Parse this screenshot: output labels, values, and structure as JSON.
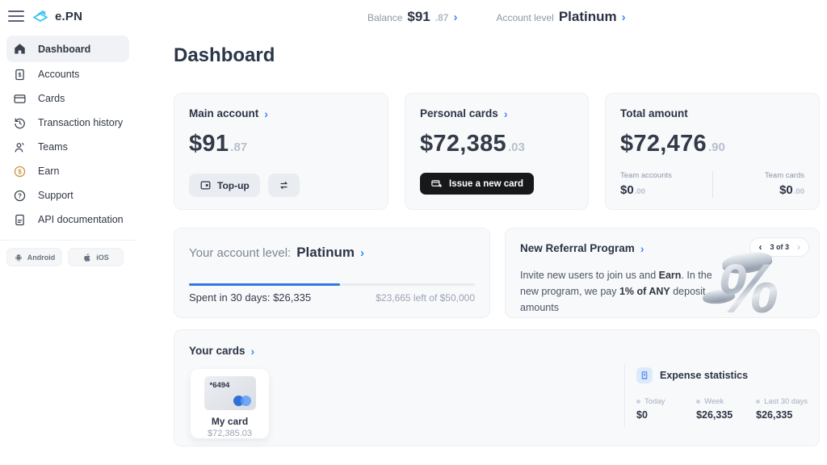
{
  "glyphs": {
    "chevron_right": "›",
    "chevron_left": "‹"
  },
  "colors": {
    "accent_blue": "#3d8af7",
    "progress_blue": "#3578e5",
    "logo_cyan": "#35c4f0",
    "earn_gold": "#c9953d",
    "dark_button": "#17181a"
  },
  "header": {
    "logo_text": "e.PN",
    "balance_label": "Balance",
    "balance_main": "$91",
    "balance_cents": ".87",
    "account_level_label": "Account level",
    "account_level_value": "Platinum"
  },
  "sidebar": {
    "items": [
      {
        "label": "Dashboard",
        "icon": "home-icon",
        "active": true
      },
      {
        "label": "Accounts",
        "icon": "account-document-icon",
        "active": false
      },
      {
        "label": "Cards",
        "icon": "card-icon",
        "active": false
      },
      {
        "label": "Transaction history",
        "icon": "history-icon",
        "active": false
      },
      {
        "label": "Teams",
        "icon": "people-icon",
        "active": false
      },
      {
        "label": "Earn",
        "icon": "dollar-circle-icon",
        "active": false
      },
      {
        "label": "Support",
        "icon": "question-circle-icon",
        "active": false
      },
      {
        "label": "API documentation",
        "icon": "document-icon",
        "active": false
      }
    ],
    "apps": [
      {
        "label": "Android",
        "icon": "android-icon"
      },
      {
        "label": "iOS",
        "icon": "apple-icon"
      }
    ]
  },
  "page_title": "Dashboard",
  "cards": {
    "main_account": {
      "title": "Main account",
      "amount_main": "$91",
      "amount_cents": ".87",
      "topup_label": "Top-up"
    },
    "personal_cards": {
      "title": "Personal cards",
      "amount_main": "$72,385",
      "amount_cents": ".03",
      "issue_label": "Issue a new card"
    },
    "total_amount": {
      "title": "Total amount",
      "amount_main": "$72,476",
      "amount_cents": ".90",
      "team_accounts_label": "Team accounts",
      "team_accounts_main": "$0",
      "team_accounts_cents": ".00",
      "team_cards_label": "Team cards",
      "team_cards_main": "$0",
      "team_cards_cents": ".00"
    }
  },
  "account_level": {
    "label": "Your account level:",
    "value": "Platinum",
    "spent_text": "Spent in 30 days: $26,335",
    "left_text": "$23,665 left of $50,000",
    "progress_percent": 52.7
  },
  "referral": {
    "title": "New Referral Program",
    "pagination": "3 of 3",
    "body_pre": "Invite new users to join us and ",
    "body_bold1": "Earn",
    "body_mid": ". In the new program, we pay ",
    "body_bold2": "1% of ANY",
    "body_post": " deposit amounts",
    "percent_glyph": "%"
  },
  "your_cards": {
    "title": "Your cards",
    "cards": [
      {
        "masked_number": "*6494",
        "name": "My card",
        "balance": "$72,385.03"
      }
    ]
  },
  "expense_stats": {
    "title": "Expense statistics",
    "stats": [
      {
        "label": "Today",
        "value": "$0"
      },
      {
        "label": "Week",
        "value": "$26,335"
      },
      {
        "label": "Last 30 days",
        "value": "$26,335"
      }
    ]
  }
}
